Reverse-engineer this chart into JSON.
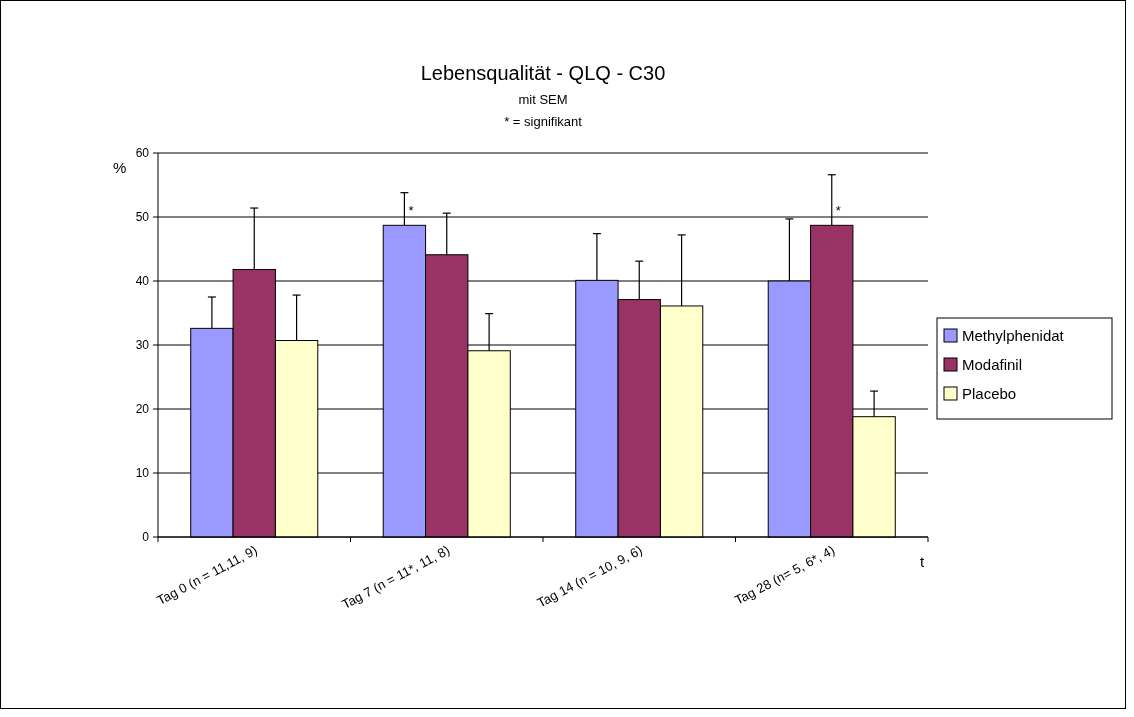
{
  "chart_data": {
    "type": "bar",
    "title": "Lebensqualität - QLQ - C30",
    "subtitle": "mit SEM",
    "xlabel": "t",
    "ylabel": "%",
    "categories": [
      "Tag 0 (n = 11,11, 9)",
      "Tag 7 (n = 11*, 11, 8)",
      "Tag 14 (n = 10, 9, 6)",
      "Tag 28 (n= 5, 6*, 4)"
    ],
    "series": [
      {
        "name": "Methylphenidat",
        "color": "#9999ff",
        "values": [
          32.6,
          48.7,
          40.1,
          40.0
        ],
        "errors": [
          [
            32.6,
            37.5
          ],
          [
            48.7,
            53.8
          ],
          [
            40.1,
            47.4
          ],
          [
            40.0,
            49.7
          ]
        ]
      },
      {
        "name": "Modafinil",
        "color": "#993366",
        "values": [
          41.8,
          44.1,
          37.1,
          48.7
        ],
        "errors": [
          [
            41.8,
            51.4
          ],
          [
            44.1,
            50.6
          ],
          [
            37.1,
            43.1
          ],
          [
            48.7,
            56.6
          ]
        ]
      },
      {
        "name": "Placebo",
        "color": "#ffffcc",
        "values": [
          30.7,
          29.1,
          36.1,
          18.8
        ],
        "errors": [
          [
            30.7,
            37.8
          ],
          [
            29.1,
            34.9
          ],
          [
            36.1,
            47.2
          ],
          [
            18.8,
            22.8
          ]
        ]
      }
    ],
    "annotations": [
      "* = signifikant",
      {
        "text": "*",
        "x": "Tag 7 (n = 11*, 11, 8)",
        "y": 48.7
      },
      {
        "text": "*",
        "x": "Tag 28 (n= 5, 6*, 4)",
        "y": 48.7
      }
    ],
    "ylim": [
      0,
      60
    ],
    "yticks": [
      0,
      10,
      20,
      30,
      40,
      50,
      60
    ],
    "grid": "y",
    "legend": "right"
  }
}
